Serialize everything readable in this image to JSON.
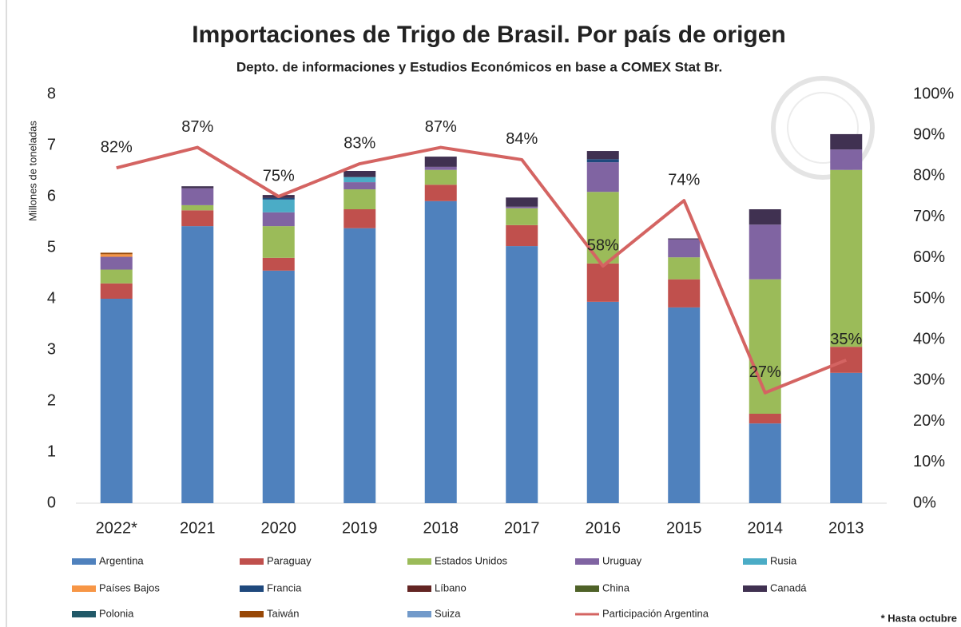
{
  "chart_data": {
    "type": "stacked_bar_line",
    "title": "Importaciones de Trigo de Brasil. Por país de origen",
    "subtitle": "Depto. de informaciones y Estudios Económicos en base a COMEX Stat Br.",
    "y_label": "Millones de toneladas",
    "note": "* Hasta octubre",
    "categories": [
      "2022*",
      "2021",
      "2020",
      "2019",
      "2018",
      "2017",
      "2016",
      "2015",
      "2014",
      "2013"
    ],
    "ylim": [
      0,
      8
    ],
    "yticks": [
      0,
      1,
      2,
      3,
      4,
      5,
      6,
      7,
      8
    ],
    "y2lim": [
      0,
      100
    ],
    "y2ticks": [
      {
        "value": 0,
        "label": "0%"
      },
      {
        "value": 10,
        "label": "10%"
      },
      {
        "value": 20,
        "label": "20%"
      },
      {
        "value": 30,
        "label": "30%"
      },
      {
        "value": 40,
        "label": "40%"
      },
      {
        "value": 50,
        "label": "50%"
      },
      {
        "value": 60,
        "label": "60%"
      },
      {
        "value": 70,
        "label": "70%"
      },
      {
        "value": 80,
        "label": "80%"
      },
      {
        "value": 90,
        "label": "90%"
      },
      {
        "value": 100,
        "label": "100%"
      }
    ],
    "series": [
      {
        "name": "Argentina",
        "color": "#4f81bd",
        "values": [
          4.0,
          5.42,
          4.55,
          5.38,
          5.91,
          5.03,
          3.94,
          3.83,
          1.56,
          2.55
        ]
      },
      {
        "name": "Paraguay",
        "color": "#c0504d",
        "values": [
          0.3,
          0.31,
          0.25,
          0.37,
          0.32,
          0.41,
          0.75,
          0.55,
          0.19,
          0.51
        ]
      },
      {
        "name": "Estados Unidos",
        "color": "#9bbb59",
        "values": [
          0.27,
          0.1,
          0.62,
          0.39,
          0.29,
          0.33,
          1.4,
          0.43,
          2.63,
          3.46
        ]
      },
      {
        "name": "Uruguay",
        "color": "#8064a2",
        "values": [
          0.25,
          0.33,
          0.27,
          0.14,
          0.06,
          0.03,
          0.58,
          0.35,
          1.07,
          0.4
        ]
      },
      {
        "name": "Rusia",
        "color": "#4bacc6",
        "values": [
          0,
          0,
          0.25,
          0.1,
          0,
          0,
          0,
          0,
          0,
          0
        ]
      },
      {
        "name": "Países Bajos",
        "color": "#f79646",
        "values": [
          0.05,
          0,
          0,
          0,
          0,
          0,
          0,
          0,
          0,
          0
        ]
      },
      {
        "name": "Francia",
        "color": "#1f497d",
        "values": [
          0,
          0,
          0.03,
          0,
          0,
          0,
          0.06,
          0,
          0,
          0
        ]
      },
      {
        "name": "Líbano",
        "color": "#632523",
        "values": [
          0,
          0,
          0,
          0,
          0,
          0,
          0,
          0,
          0,
          0
        ]
      },
      {
        "name": "China",
        "color": "#4f6228",
        "values": [
          0,
          0,
          0,
          0,
          0,
          0,
          0,
          0,
          0,
          0
        ]
      },
      {
        "name": "Canadá",
        "color": "#403151",
        "values": [
          0,
          0.04,
          0.06,
          0.12,
          0.2,
          0.18,
          0.16,
          0.02,
          0.3,
          0.3
        ]
      },
      {
        "name": "Polonia",
        "color": "#215968",
        "values": [
          0,
          0,
          0,
          0,
          0,
          0,
          0,
          0,
          0,
          0
        ]
      },
      {
        "name": "Taiwán",
        "color": "#984807",
        "values": [
          0.03,
          0,
          0,
          0,
          0,
          0,
          0,
          0,
          0,
          0
        ]
      },
      {
        "name": "Suiza",
        "color": "#729aca",
        "values": [
          0,
          0,
          0,
          0,
          0,
          0,
          0,
          0,
          0,
          0
        ]
      },
      {
        "name": "Participación Argentina",
        "color": "#d46462",
        "type": "line",
        "axis": "y2",
        "values": [
          82,
          87,
          75,
          83,
          87,
          84,
          58,
          74,
          27,
          35
        ],
        "value_labels": [
          "82%",
          "87%",
          "75%",
          "83%",
          "87%",
          "84%",
          "58%",
          "74%",
          "27%",
          "35%"
        ]
      }
    ]
  }
}
